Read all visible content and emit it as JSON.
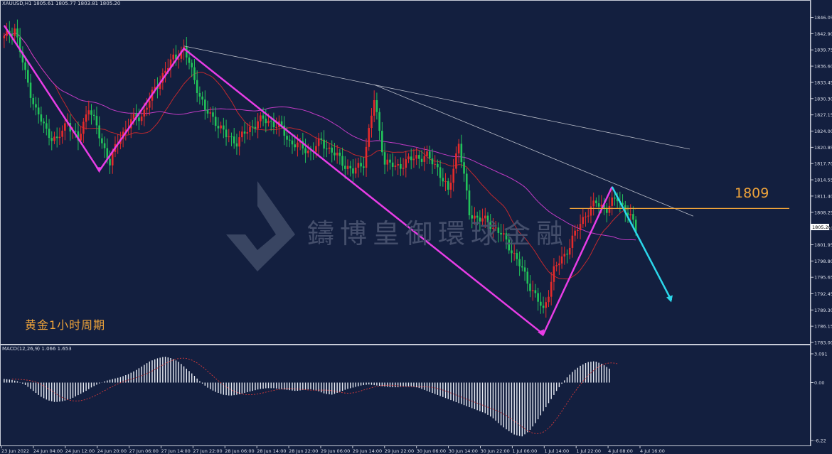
{
  "header": {
    "symbol_info": "XAUUSD,H1  1805.61 1805.77 1803.81 1805.20"
  },
  "annotation": {
    "period_label": "黄金1小时周期",
    "level_label": "1809"
  },
  "watermark": {
    "text": "鑄博皇御環球金融"
  },
  "macd": {
    "header": "MACD(12,26,9) 1.066 1.653"
  },
  "colors": {
    "background": "#131f3f",
    "bull": "#e52b2b",
    "bear": "#22c35a",
    "ma_fast": "#c0282e",
    "ma_slow": "#c23bc6",
    "wave": "#e83de6",
    "forecast": "#2bd6ea",
    "level": "#f0a43a",
    "trend": "#b8bcc8"
  },
  "chart_data": {
    "type": "candlestick",
    "symbol": "XAUUSD",
    "timeframe": "H1",
    "ylim": [
      1783.0,
      1847.5
    ],
    "y_ticks": [
      "1846.05",
      "1842.90",
      "1839.75",
      "1836.60",
      "1833.45",
      "1830.30",
      "1827.15",
      "1824.00",
      "1820.85",
      "1817.70",
      "1814.55",
      "1811.40",
      "1808.25",
      "1805.20",
      "1801.95",
      "1798.80",
      "1795.65",
      "1792.45",
      "1789.30",
      "1786.15",
      "1783.00"
    ],
    "current_price": "1805.20",
    "x_ticks": [
      "23 Jun 2022",
      "24 Jun 04:00",
      "24 Jun 12:00",
      "24 Jun 20:00",
      "27 Jun 06:00",
      "27 Jun 14:00",
      "27 Jun 22:00",
      "28 Jun 06:00",
      "28 Jun 14:00",
      "28 Jun 22:00",
      "29 Jun 06:00",
      "29 Jun 14:00",
      "29 Jun 22:00",
      "30 Jun 06:00",
      "30 Jun 14:00",
      "30 Jun 22:00",
      "1 Jul 06:00",
      "1 Jul 14:00",
      "1 Jul 22:00",
      "4 Jul 08:00",
      "4 Jul 16:00"
    ],
    "key_level": 1809,
    "price_path": [
      [
        0,
        1842
      ],
      [
        4,
        1844
      ],
      [
        8,
        1835
      ],
      [
        12,
        1828
      ],
      [
        16,
        1824
      ],
      [
        20,
        1822
      ],
      [
        24,
        1826
      ],
      [
        28,
        1822
      ],
      [
        32,
        1829
      ],
      [
        36,
        1823
      ],
      [
        40,
        1818
      ],
      [
        44,
        1823
      ],
      [
        48,
        1826
      ],
      [
        52,
        1827
      ],
      [
        56,
        1831
      ],
      [
        60,
        1835
      ],
      [
        64,
        1838
      ],
      [
        68,
        1840
      ],
      [
        72,
        1834
      ],
      [
        76,
        1828
      ],
      [
        80,
        1826
      ],
      [
        84,
        1823
      ],
      [
        88,
        1822
      ],
      [
        92,
        1824
      ],
      [
        96,
        1826
      ],
      [
        100,
        1826
      ],
      [
        104,
        1825
      ],
      [
        108,
        1822
      ],
      [
        112,
        1821
      ],
      [
        116,
        1820
      ],
      [
        120,
        1822
      ],
      [
        124,
        1820
      ],
      [
        128,
        1818
      ],
      [
        132,
        1816
      ],
      [
        136,
        1818
      ],
      [
        140,
        1830
      ],
      [
        144,
        1818
      ],
      [
        148,
        1817
      ],
      [
        152,
        1818
      ],
      [
        156,
        1819
      ],
      [
        160,
        1819
      ],
      [
        164,
        1817
      ],
      [
        168,
        1812
      ],
      [
        172,
        1822
      ],
      [
        176,
        1808
      ],
      [
        180,
        1807
      ],
      [
        184,
        1806
      ],
      [
        188,
        1804
      ],
      [
        192,
        1801
      ],
      [
        196,
        1797
      ],
      [
        200,
        1793
      ],
      [
        204,
        1789
      ],
      [
        208,
        1797
      ],
      [
        212,
        1800
      ],
      [
        216,
        1804
      ],
      [
        220,
        1808
      ],
      [
        224,
        1810
      ],
      [
        228,
        1809
      ],
      [
        232,
        1811
      ],
      [
        236,
        1808
      ],
      [
        239,
        1805
      ]
    ],
    "macd_ylim": [
      -6.22,
      3.091
    ],
    "macd_ticks": [
      "3.091",
      "0.00",
      "-6.22"
    ],
    "macd_hist": [
      0.4,
      0.3,
      0.1,
      -0.3,
      -0.9,
      -1.5,
      -1.9,
      -2.1,
      -2.0,
      -1.8,
      -1.4,
      -1.0,
      -0.5,
      -0.1,
      0.2,
      0.4,
      0.6,
      0.9,
      1.3,
      1.8,
      2.3,
      2.6,
      2.8,
      2.6,
      2.2,
      1.5,
      0.8,
      0.0,
      -0.6,
      -1.0,
      -1.3,
      -1.4,
      -1.3,
      -1.1,
      -0.9,
      -0.7,
      -0.6,
      -0.6,
      -0.7,
      -0.8,
      -0.9,
      -0.8,
      -0.7,
      -0.9,
      -1.2,
      -1.3,
      -1.0,
      -0.7,
      -0.5,
      -0.3,
      -0.2,
      -0.3,
      -0.4,
      -0.5,
      -0.5,
      -0.4,
      -0.4,
      -0.6,
      -0.9,
      -1.2,
      -1.5,
      -1.8,
      -2.1,
      -2.4,
      -2.7,
      -3.0,
      -3.3,
      -3.8,
      -4.5,
      -5.1,
      -5.6,
      -5.8,
      -5.2,
      -4.2,
      -3.0,
      -1.8,
      -0.6,
      0.4,
      1.2,
      1.8,
      2.2,
      2.3,
      2.0,
      1.5
    ]
  }
}
